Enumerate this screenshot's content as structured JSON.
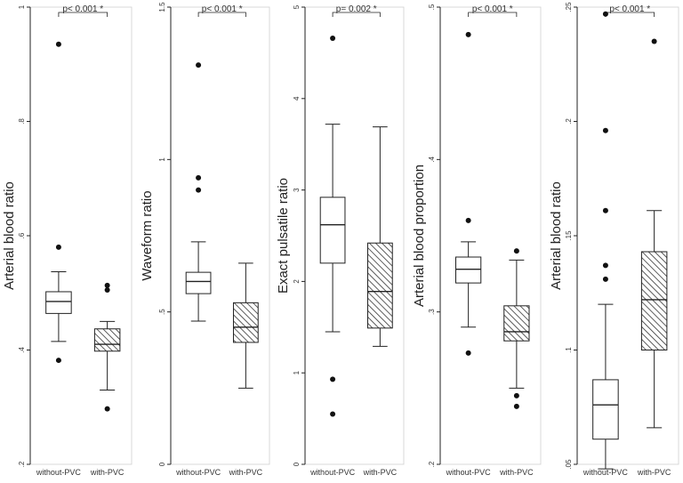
{
  "colors": {
    "axis": "#222222",
    "box_fill": "#ffffff",
    "hatch": "#333333",
    "panel_border": "#cfcfcf",
    "point": "#111111"
  },
  "chart_data": [
    {
      "type": "box",
      "ylabel": "Arterial blood ratio",
      "ylim": [
        0.2,
        1.0
      ],
      "yticks": [
        0.2,
        0.4,
        0.6,
        0.8,
        1.0
      ],
      "ytick_labels": [
        ".2",
        ".4",
        ".6",
        ".8",
        "1"
      ],
      "categories": [
        "without-PVC",
        "with-PVC"
      ],
      "annotation": "p< 0.001 *",
      "boxes": [
        {
          "whisker_low": 0.415,
          "q1": 0.464,
          "median": 0.485,
          "q3": 0.502,
          "whisker_high": 0.537,
          "outliers": [
            0.935,
            0.58,
            0.382
          ]
        },
        {
          "whisker_low": 0.33,
          "q1": 0.398,
          "median": 0.41,
          "q3": 0.437,
          "whisker_high": 0.45,
          "outliers": [
            0.513,
            0.505,
            0.297
          ]
        }
      ]
    },
    {
      "type": "box",
      "ylabel": "Waveform ratio",
      "ylim": [
        0,
        1.5
      ],
      "yticks": [
        0,
        0.5,
        1.0,
        1.5
      ],
      "ytick_labels": [
        "0",
        ".5",
        "1",
        "1.5"
      ],
      "categories": [
        "without-PVC",
        "with-PVC"
      ],
      "annotation": "p< 0.001 *",
      "boxes": [
        {
          "whisker_low": 0.47,
          "q1": 0.56,
          "median": 0.6,
          "q3": 0.63,
          "whisker_high": 0.73,
          "outliers": [
            1.31,
            0.94,
            0.9
          ]
        },
        {
          "whisker_low": 0.25,
          "q1": 0.4,
          "median": 0.45,
          "q3": 0.53,
          "whisker_high": 0.66,
          "outliers": []
        }
      ]
    },
    {
      "type": "box",
      "ylabel": "Exact pulsatile ratio",
      "ylim": [
        0,
        5
      ],
      "yticks": [
        0,
        1,
        2,
        3,
        4,
        5
      ],
      "ytick_labels": [
        "0",
        "1",
        "2",
        "3",
        "4",
        "5"
      ],
      "categories": [
        "without-PVC",
        "with-PVC"
      ],
      "annotation": "p= 0.002 *",
      "boxes": [
        {
          "whisker_low": 1.45,
          "q1": 2.2,
          "median": 2.62,
          "q3": 2.92,
          "whisker_high": 3.72,
          "outliers": [
            4.66,
            0.93,
            0.55
          ]
        },
        {
          "whisker_low": 1.29,
          "q1": 1.49,
          "median": 1.89,
          "q3": 2.42,
          "whisker_high": 3.69,
          "outliers": []
        }
      ]
    },
    {
      "type": "box",
      "ylabel": "Arterial blood proportion",
      "ylim": [
        0.2,
        0.5
      ],
      "yticks": [
        0.2,
        0.3,
        0.4,
        0.5
      ],
      "ytick_labels": [
        ".2",
        ".3",
        ".4",
        ".5"
      ],
      "categories": [
        "without-PVC",
        "with-PVC"
      ],
      "annotation": "p< 0.001 *",
      "boxes": [
        {
          "whisker_low": 0.29,
          "q1": 0.319,
          "median": 0.328,
          "q3": 0.336,
          "whisker_high": 0.346,
          "outliers": [
            0.482,
            0.36,
            0.273
          ]
        },
        {
          "whisker_low": 0.25,
          "q1": 0.281,
          "median": 0.287,
          "q3": 0.304,
          "whisker_high": 0.334,
          "outliers": [
            0.34,
            0.245,
            0.238
          ]
        }
      ]
    },
    {
      "type": "box",
      "ylabel": "Arterial blood ratio",
      "ylim": [
        0.05,
        0.25
      ],
      "yticks": [
        0.05,
        0.1,
        0.15,
        0.2,
        0.25
      ],
      "ytick_labels": [
        ".05",
        ".1",
        ".15",
        ".2",
        ".25"
      ],
      "categories": [
        "without-PVC",
        "with-PVC"
      ],
      "annotation": "p< 0.001 *",
      "boxes": [
        {
          "whisker_low": 0.048,
          "q1": 0.061,
          "median": 0.076,
          "q3": 0.087,
          "whisker_high": 0.12,
          "outliers": [
            0.247,
            0.196,
            0.161,
            0.137,
            0.131
          ]
        },
        {
          "whisker_low": 0.066,
          "q1": 0.1,
          "median": 0.122,
          "q3": 0.143,
          "whisker_high": 0.161,
          "outliers": [
            0.235
          ]
        }
      ]
    }
  ]
}
